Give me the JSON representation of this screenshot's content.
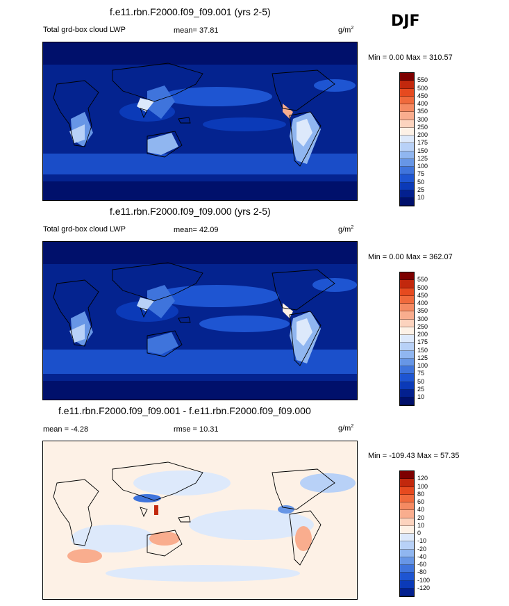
{
  "season": "DJF",
  "panels": [
    {
      "title": "f.e11.rbn.F2000.f09_f09.001 (yrs 2-5)",
      "left_label": "Total grd-box cloud LWP",
      "stat_text": "mean=  37.81",
      "units": "g/m",
      "units_exp": "2",
      "minmax": "Min =   0.00 Max = 310.57",
      "colorbar_labels": [
        "550",
        "500",
        "450",
        "400",
        "350",
        "300",
        "250",
        "200",
        "175",
        "150",
        "125",
        "100",
        "75",
        "50",
        "25",
        "10"
      ],
      "colorbar_colors": [
        "#7d0000",
        "#c2280d",
        "#e64a1f",
        "#f06a3c",
        "#f58a62",
        "#f9ad8e",
        "#fcd3be",
        "#fdf1e6",
        "#dde9fb",
        "#b8d1f7",
        "#90b6f0",
        "#6796e6",
        "#3f74dc",
        "#1e55d2",
        "#0b3ab8",
        "#03208f",
        "#00106b"
      ]
    },
    {
      "title": "f.e11.rbn.F2000.f09_f09.000 (yrs 2-5)",
      "left_label": "Total grd-box cloud LWP",
      "stat_text": "mean=  42.09",
      "units": "g/m",
      "units_exp": "2",
      "minmax": "Min =   0.00 Max = 362.07",
      "colorbar_labels": [
        "550",
        "500",
        "450",
        "400",
        "350",
        "300",
        "250",
        "200",
        "175",
        "150",
        "125",
        "100",
        "75",
        "50",
        "25",
        "10"
      ],
      "colorbar_colors": [
        "#7d0000",
        "#c2280d",
        "#e64a1f",
        "#f06a3c",
        "#f58a62",
        "#f9ad8e",
        "#fcd3be",
        "#fdf1e6",
        "#dde9fb",
        "#b8d1f7",
        "#90b6f0",
        "#6796e6",
        "#3f74dc",
        "#1e55d2",
        "#0b3ab8",
        "#03208f",
        "#00106b"
      ]
    },
    {
      "title": "f.e11.rbn.F2000.f09_f09.001 - f.e11.rbn.F2000.f09_f09.000",
      "left_label": "mean =  -4.28",
      "stat_text": "rmse =  10.31",
      "units": "g/m",
      "units_exp": "2",
      "minmax": "Min = -109.43 Max =  57.35",
      "colorbar_labels": [
        "120",
        "100",
        "80",
        "60",
        "40",
        "20",
        "10",
        "0",
        "-10",
        "-20",
        "-40",
        "-60",
        "-80",
        "-100",
        "-120"
      ],
      "colorbar_colors": [
        "#7d0000",
        "#c2280d",
        "#e64a1f",
        "#f06a3c",
        "#f58a62",
        "#f9ad8e",
        "#fcd3be",
        "#fdf1e6",
        "#dde9fb",
        "#b8d1f7",
        "#90b6f0",
        "#6796e6",
        "#3f74dc",
        "#1e55d2",
        "#0b3ab8",
        "#03208f"
      ]
    }
  ],
  "chart_data": [
    {
      "type": "heatmap",
      "title": "f.e11.rbn.F2000.f09_f09.001 (yrs 2-5)",
      "variable": "Total grd-box cloud LWP",
      "units": "g/m2",
      "mean": 37.81,
      "min": 0.0,
      "max": 310.57,
      "contour_levels": [
        10,
        25,
        50,
        75,
        100,
        125,
        150,
        175,
        200,
        250,
        300,
        350,
        400,
        450,
        500,
        550
      ]
    },
    {
      "type": "heatmap",
      "title": "f.e11.rbn.F2000.f09_f09.000 (yrs 2-5)",
      "variable": "Total grd-box cloud LWP",
      "units": "g/m2",
      "mean": 42.09,
      "min": 0.0,
      "max": 362.07,
      "contour_levels": [
        10,
        25,
        50,
        75,
        100,
        125,
        150,
        175,
        200,
        250,
        300,
        350,
        400,
        450,
        500,
        550
      ]
    },
    {
      "type": "heatmap",
      "title": "f.e11.rbn.F2000.f09_f09.001 - f.e11.rbn.F2000.f09_f09.000",
      "units": "g/m2",
      "mean": -4.28,
      "rmse": 10.31,
      "min": -109.43,
      "max": 57.35,
      "contour_levels": [
        -120,
        -100,
        -80,
        -60,
        -40,
        -20,
        -10,
        0,
        10,
        20,
        40,
        60,
        80,
        100,
        120
      ]
    }
  ]
}
